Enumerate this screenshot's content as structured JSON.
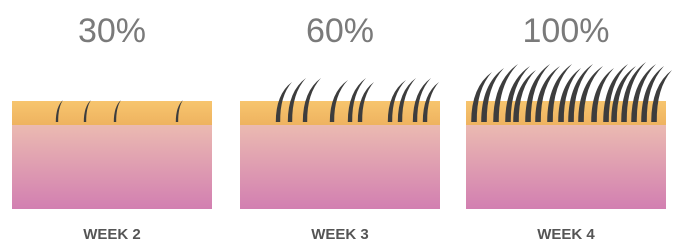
{
  "panels": [
    {
      "percent": "30%",
      "label": "WEEK 2"
    },
    {
      "percent": "60%",
      "label": "WEEK 3"
    },
    {
      "percent": "100%",
      "label": "WEEK 4"
    }
  ]
}
